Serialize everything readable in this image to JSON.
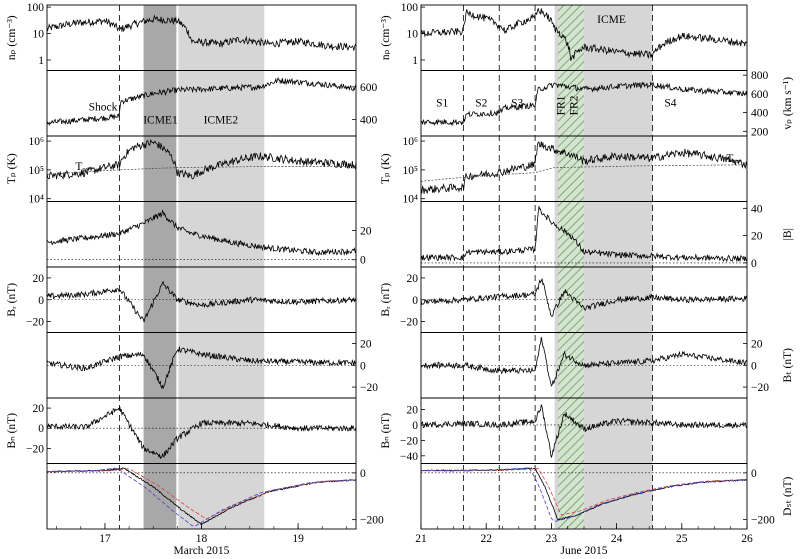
{
  "figures": [
    {
      "id": "march",
      "x_title": "March 2015",
      "x_ticks": [
        "17",
        "18",
        "19"
      ],
      "shade_labels": [
        "ICME1",
        "ICME2"
      ],
      "panel_labels": {
        "np": "nₚ (cm⁻³)",
        "tp": "Tₚ (K)",
        "br": "Bᵣ (nT)",
        "bn": "Bₙ (nT)"
      },
      "tick_labels": {
        "np": [
          "100",
          "10",
          "1"
        ],
        "vp": [
          "600",
          "400"
        ],
        "tp": [
          "10⁶",
          "10⁵",
          "10⁴"
        ],
        "b": [
          "20",
          "0"
        ],
        "br": [
          "20",
          "0",
          "−20"
        ],
        "bt": [
          "20",
          "0",
          "−20"
        ],
        "bn": [
          "20",
          "0",
          "−20"
        ],
        "dst": [
          "0",
          "−200"
        ]
      },
      "annotations": {
        "shock": "Shock",
        "tex": "Tₑₓ"
      }
    },
    {
      "id": "june",
      "x_title": "June 2015",
      "x_ticks": [
        "21",
        "22",
        "23",
        "24",
        "25",
        "26"
      ],
      "shade_labels": [
        "ICME"
      ],
      "hatch_labels": [
        "FR1",
        "FR2"
      ],
      "region_labels": [
        "S1",
        "S2",
        "S3",
        "S4"
      ],
      "panel_labels": {
        "np": "nₚ (cm⁻³)",
        "vp": "vₚ (km s⁻¹)",
        "tp": "Tₚ (K)",
        "b": "|B|",
        "br": "Bᵣ (nT)",
        "bt": "Bₜ (nT)",
        "bn": "Bₙ (nT)",
        "dst": "Dₛₜ (nT)"
      },
      "tick_labels": {
        "np": [
          "100",
          "10",
          "1"
        ],
        "vp": [
          "800",
          "600",
          "400",
          "200"
        ],
        "tp": [
          "10⁶",
          "10⁵",
          "10⁴"
        ],
        "b": [
          "40",
          "20",
          "0"
        ],
        "br": [
          "20",
          "0",
          "−20"
        ],
        "bt": [
          "20",
          "0",
          "−20"
        ],
        "bn": [
          "20",
          "0",
          "−20",
          "−40"
        ],
        "dst": [
          "0",
          "−200"
        ]
      },
      "annotations": {
        "tex": "Tₑₓ"
      }
    }
  ],
  "chart_data": [
    {
      "type": "line",
      "figure": "march",
      "x_unit": "day of March 2015",
      "xlim": [
        16.4,
        19.6
      ],
      "markers": {
        "shock": 17.15,
        "icme1": [
          17.4,
          17.75
        ],
        "icme2": [
          17.75,
          18.65
        ]
      },
      "panels": [
        {
          "name": "np",
          "log": true,
          "ylim": [
            0.4,
            120
          ],
          "series": [
            {
              "x": [
                16.4,
                16.7,
                17.0,
                17.15,
                17.3,
                17.5,
                17.75,
                17.9,
                18.2,
                18.4,
                18.7,
                19.0,
                19.3,
                19.6
              ],
              "y": [
                15,
                25,
                30,
                14,
                22,
                35,
                30,
                5,
                4,
                6,
                4,
                5,
                3.5,
                3
              ]
            }
          ]
        },
        {
          "name": "vp",
          "log": false,
          "ylim": [
            300,
            700
          ],
          "series": [
            {
              "x": [
                16.4,
                16.8,
                17.15,
                17.16,
                17.5,
                17.75,
                18.2,
                18.6,
                18.8,
                19.2,
                19.6
              ],
              "y": [
                380,
                400,
                420,
                510,
                560,
                580,
                590,
                600,
                640,
                620,
                590
              ]
            }
          ]
        },
        {
          "name": "tp",
          "log": true,
          "ylim": [
            8000,
            1500000
          ],
          "series": [
            {
              "x": [
                16.4,
                16.8,
                17.15,
                17.3,
                17.5,
                17.75,
                17.9,
                18.2,
                18.6,
                19.0,
                19.6
              ],
              "y": [
                60000,
                80000,
                150000,
                600000,
                900000,
                80000,
                60000,
                150000,
                300000,
                200000,
                150000
              ]
            },
            {
              "x": [
                16.4,
                17.15,
                17.75,
                18.6,
                19.6
              ],
              "y": [
                70000,
                100000,
                120000,
                130000,
                130000
              ]
            }
          ]
        },
        {
          "name": "b",
          "log": false,
          "ylim": [
            -5,
            40
          ],
          "series": [
            {
              "x": [
                16.4,
                16.8,
                17.15,
                17.4,
                17.6,
                17.75,
                17.9,
                18.3,
                18.7,
                19.2,
                19.6
              ],
              "y": [
                12,
                15,
                18,
                25,
                32,
                22,
                18,
                12,
                8,
                5,
                6
              ]
            }
          ]
        },
        {
          "name": "br",
          "log": false,
          "ylim": [
            -30,
            30
          ],
          "series": [
            {
              "x": [
                16.4,
                16.8,
                17.15,
                17.4,
                17.6,
                17.75,
                18.0,
                18.5,
                19.0,
                19.6
              ],
              "y": [
                3,
                5,
                10,
                -20,
                15,
                0,
                -5,
                0,
                -2,
                0
              ]
            }
          ]
        },
        {
          "name": "bt",
          "log": false,
          "ylim": [
            -30,
            30
          ],
          "series": [
            {
              "x": [
                16.4,
                16.8,
                17.15,
                17.4,
                17.6,
                17.75,
                18.0,
                18.5,
                19.0,
                19.6
              ],
              "y": [
                2,
                -3,
                8,
                10,
                -20,
                15,
                10,
                4,
                3,
                2
              ]
            }
          ]
        },
        {
          "name": "bn",
          "log": false,
          "ylim": [
            -35,
            30
          ],
          "series": [
            {
              "x": [
                16.4,
                16.8,
                17.15,
                17.4,
                17.6,
                17.75,
                18.0,
                18.5,
                19.0,
                19.6
              ],
              "y": [
                2,
                1,
                20,
                -20,
                -28,
                -10,
                5,
                5,
                0,
                0
              ]
            }
          ]
        },
        {
          "name": "dst",
          "log": false,
          "ylim": [
            -240,
            40
          ],
          "series": [
            {
              "x": [
                16.4,
                17.0,
                17.2,
                17.5,
                17.8,
                18.0,
                18.3,
                18.7,
                19.2,
                19.6
              ],
              "y": [
                5,
                10,
                20,
                -60,
                -160,
                -220,
                -150,
                -80,
                -40,
                -30
              ]
            }
          ]
        }
      ]
    },
    {
      "type": "line",
      "figure": "june",
      "x_unit": "day of June 2015",
      "xlim": [
        21,
        26
      ],
      "markers": {
        "shocks": [
          21.65,
          22.2,
          22.75
        ],
        "s4": 24.55,
        "icme": [
          23.05,
          24.55
        ],
        "fr1": [
          23.1,
          23.3
        ],
        "fr2": [
          23.3,
          23.5
        ]
      },
      "panels": [
        {
          "name": "np",
          "log": true,
          "ylim": [
            0.4,
            120
          ],
          "series": [
            {
              "x": [
                21,
                21.65,
                21.7,
                22.2,
                22.3,
                22.75,
                22.8,
                23.05,
                23.3,
                23.5,
                24.0,
                24.55,
                25.0,
                25.5,
                26
              ],
              "y": [
                10,
                12,
                60,
                20,
                12,
                40,
                80,
                15,
                1,
                3,
                2,
                1.5,
                8,
                6,
                4
              ]
            }
          ]
        },
        {
          "name": "vp",
          "log": false,
          "ylim": [
            150,
            850
          ],
          "series": [
            {
              "x": [
                21,
                21.65,
                21.7,
                22.2,
                22.3,
                22.75,
                22.8,
                23.05,
                23.5,
                24.0,
                24.55,
                25.0,
                26
              ],
              "y": [
                300,
                300,
                380,
                400,
                450,
                480,
                650,
                700,
                650,
                680,
                700,
                650,
                600
              ]
            }
          ]
        },
        {
          "name": "tp",
          "log": true,
          "ylim": [
            8000,
            1500000
          ],
          "series": [
            {
              "x": [
                21,
                21.65,
                21.7,
                22.2,
                22.75,
                22.8,
                23.05,
                23.5,
                24.0,
                24.55,
                25.0,
                26
              ],
              "y": [
                20000,
                25000,
                60000,
                80000,
                150000,
                800000,
                500000,
                200000,
                300000,
                250000,
                400000,
                150000
              ]
            },
            {
              "x": [
                21,
                22.75,
                23.05,
                24.55,
                26
              ],
              "y": [
                40000,
                80000,
                120000,
                140000,
                150000
              ]
            }
          ]
        },
        {
          "name": "b",
          "log": false,
          "ylim": [
            -3,
            45
          ],
          "series": [
            {
              "x": [
                21,
                21.65,
                21.7,
                22.2,
                22.75,
                22.8,
                23.0,
                23.3,
                23.5,
                24.0,
                24.55,
                25.0,
                26
              ],
              "y": [
                4,
                4,
                8,
                8,
                10,
                40,
                30,
                20,
                8,
                6,
                5,
                4,
                3
              ]
            }
          ]
        },
        {
          "name": "br",
          "log": false,
          "ylim": [
            -30,
            30
          ],
          "series": [
            {
              "x": [
                21,
                21.65,
                22.2,
                22.75,
                22.85,
                23.0,
                23.2,
                23.5,
                24.0,
                24.55,
                25.0,
                26
              ],
              "y": [
                -2,
                0,
                3,
                5,
                20,
                -15,
                8,
                -8,
                0,
                2,
                0,
                1
              ]
            }
          ]
        },
        {
          "name": "bt",
          "log": false,
          "ylim": [
            -30,
            30
          ],
          "series": [
            {
              "x": [
                21,
                21.65,
                22.2,
                22.75,
                22.85,
                23.0,
                23.2,
                23.5,
                24.0,
                24.55,
                25.0,
                26
              ],
              "y": [
                0,
                0,
                -5,
                -5,
                25,
                -20,
                10,
                0,
                2,
                4,
                10,
                2
              ]
            }
          ]
        },
        {
          "name": "bn",
          "log": false,
          "ylim": [
            -50,
            35
          ],
          "series": [
            {
              "x": [
                21,
                21.65,
                22.2,
                22.75,
                22.85,
                23.0,
                23.2,
                23.5,
                24.0,
                24.55,
                25.0,
                26
              ],
              "y": [
                0,
                2,
                0,
                5,
                25,
                -40,
                15,
                -5,
                5,
                3,
                0,
                0
              ]
            }
          ]
        },
        {
          "name": "dst",
          "log": false,
          "ylim": [
            -240,
            40
          ],
          "series": [
            {
              "x": [
                21,
                21.65,
                22.2,
                22.75,
                22.9,
                23.1,
                23.4,
                23.8,
                24.3,
                24.8,
                25.3,
                26
              ],
              "y": [
                10,
                10,
                12,
                20,
                -60,
                -200,
                -180,
                -130,
                -90,
                -60,
                -40,
                -30
              ]
            }
          ]
        }
      ]
    }
  ]
}
